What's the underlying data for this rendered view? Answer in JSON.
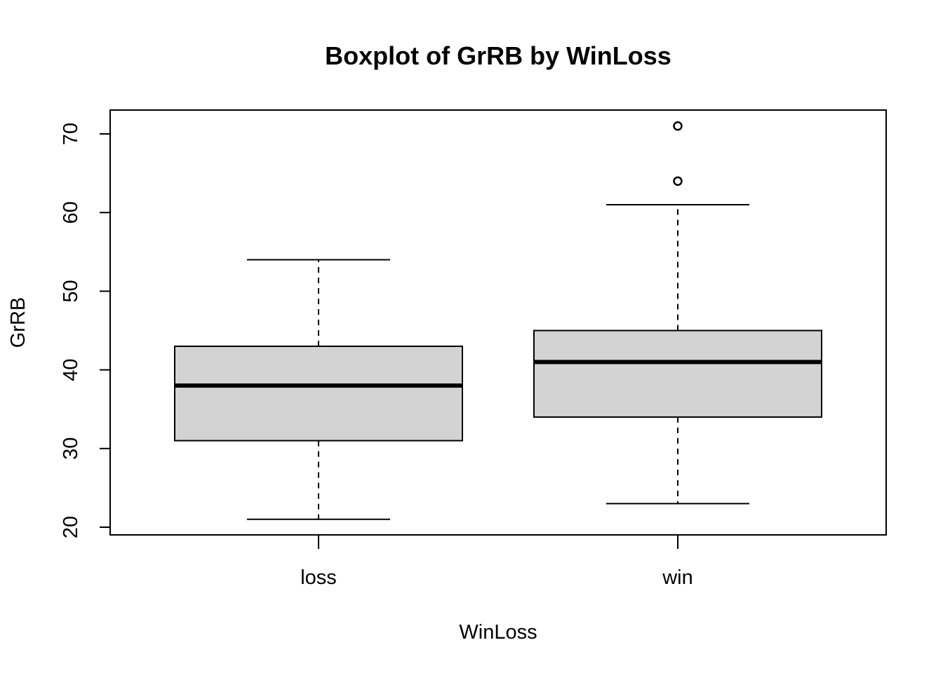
{
  "chart_data": {
    "type": "boxplot",
    "title": "Boxplot of GrRB by WinLoss",
    "xlabel": "WinLoss",
    "ylabel": "GrRB",
    "categories": [
      "loss",
      "win"
    ],
    "y_ticks": [
      20,
      30,
      40,
      50,
      60,
      70
    ],
    "ylim": [
      19,
      73
    ],
    "boxes": [
      {
        "category": "loss",
        "whisker_low": 21,
        "q1": 31,
        "median": 38,
        "q3": 43,
        "whisker_high": 54,
        "outliers": []
      },
      {
        "category": "win",
        "whisker_low": 23,
        "q1": 34,
        "median": 41,
        "q3": 45,
        "whisker_high": 61,
        "outliers": [
          64,
          71
        ]
      }
    ],
    "box_fill": "#d3d3d3",
    "line_color": "#000000",
    "background": "#ffffff",
    "grid": false,
    "legend": "none"
  }
}
